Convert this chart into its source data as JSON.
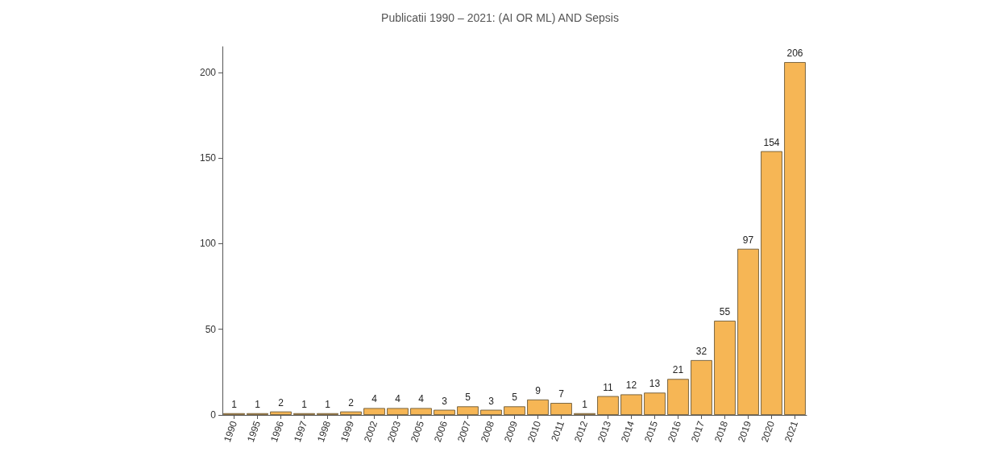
{
  "chart_data": {
    "type": "bar",
    "title": "Publicatii 1990 – 2021: (AI OR ML) AND Sepsis",
    "categories": [
      "1990",
      "1995",
      "1996",
      "1997",
      "1998",
      "1999",
      "2002",
      "2003",
      "2005",
      "2006",
      "2007",
      "2008",
      "2009",
      "2010",
      "2011",
      "2012",
      "2013",
      "2014",
      "2015",
      "2016",
      "2017",
      "2018",
      "2019",
      "2020",
      "2021"
    ],
    "values": [
      1,
      1,
      2,
      1,
      1,
      2,
      4,
      4,
      4,
      3,
      5,
      3,
      5,
      9,
      7,
      1,
      11,
      12,
      13,
      21,
      32,
      55,
      97,
      154,
      206
    ],
    "color": "#f6b655",
    "ylim": [
      0,
      215
    ],
    "yticks": [
      0,
      50,
      100,
      150,
      200
    ],
    "grid": false,
    "data_labels": true
  }
}
